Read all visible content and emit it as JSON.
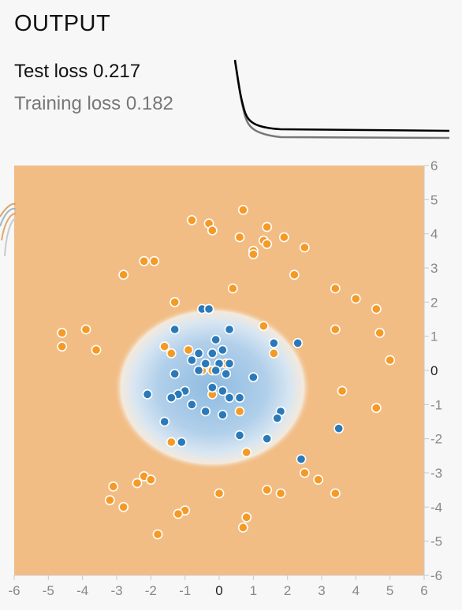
{
  "panel": {
    "title": "OUTPUT",
    "test_loss_label": "Test loss",
    "test_loss_value": "0.217",
    "training_loss_label": "Training loss",
    "training_loss_value": "0.182"
  },
  "colors": {
    "orange": "#f59a26",
    "blue": "#2b79b8",
    "bg_orange": "#f2bd85",
    "bg_blue": "#a9cbe6",
    "test_loss_line": "#000000",
    "training_loss_line": "#777777"
  },
  "chart_data": {
    "type": "scatter",
    "title": "",
    "xlabel": "",
    "ylabel": "",
    "xlim": [
      -6,
      6
    ],
    "ylim": [
      -6,
      6
    ],
    "x_ticks": [
      -6,
      -5,
      -4,
      -3,
      -2,
      -1,
      0,
      1,
      2,
      3,
      4,
      5,
      6
    ],
    "y_ticks": [
      6,
      5,
      4,
      3,
      2,
      1,
      0,
      -1,
      -2,
      -3,
      -4,
      -5,
      -6
    ],
    "decision_region": {
      "blue_class_center": [
        -0.2,
        -0.5
      ],
      "blue_class_semi_axes": [
        2.5,
        2.0
      ]
    },
    "series": [
      {
        "class": "orange",
        "points": [
          [
            -0.8,
            4.4
          ],
          [
            0.7,
            4.7
          ],
          [
            -0.3,
            4.3
          ],
          [
            -0.2,
            4.1
          ],
          [
            1.4,
            4.2
          ],
          [
            0.6,
            3.9
          ],
          [
            1.3,
            3.8
          ],
          [
            1.9,
            3.9
          ],
          [
            1.4,
            3.7
          ],
          [
            1.0,
            3.5
          ],
          [
            1.0,
            3.4
          ],
          [
            2.5,
            3.6
          ],
          [
            -2.2,
            3.2
          ],
          [
            -1.9,
            3.2
          ],
          [
            -2.8,
            2.8
          ],
          [
            2.2,
            2.8
          ],
          [
            0.4,
            2.4
          ],
          [
            3.4,
            2.4
          ],
          [
            4.0,
            2.1
          ],
          [
            -1.3,
            2.0
          ],
          [
            4.6,
            1.8
          ],
          [
            -3.9,
            1.2
          ],
          [
            -4.6,
            1.1
          ],
          [
            -4.6,
            0.7
          ],
          [
            -3.6,
            0.6
          ],
          [
            1.3,
            1.3
          ],
          [
            3.4,
            1.2
          ],
          [
            4.7,
            1.1
          ],
          [
            -1.6,
            0.7
          ],
          [
            -0.9,
            0.6
          ],
          [
            -1.4,
            0.5
          ],
          [
            1.6,
            0.5
          ],
          [
            5.0,
            0.3
          ],
          [
            0.2,
            0.2
          ],
          [
            -0.2,
            -0.0
          ],
          [
            -0.5,
            0.0
          ],
          [
            -0.2,
            -0.7
          ],
          [
            3.6,
            -0.6
          ],
          [
            0.6,
            -1.2
          ],
          [
            4.6,
            -1.1
          ],
          [
            -1.4,
            -2.1
          ],
          [
            0.8,
            -2.4
          ],
          [
            2.5,
            -3.0
          ],
          [
            2.9,
            -3.2
          ],
          [
            -3.1,
            -3.4
          ],
          [
            -2.2,
            -3.1
          ],
          [
            -2.4,
            -3.3
          ],
          [
            -2.0,
            -3.2
          ],
          [
            1.4,
            -3.5
          ],
          [
            1.8,
            -3.6
          ],
          [
            3.4,
            -3.6
          ],
          [
            0.0,
            -3.6
          ],
          [
            -3.2,
            -3.8
          ],
          [
            -2.8,
            -4.0
          ],
          [
            -1.0,
            -4.1
          ],
          [
            -1.2,
            -4.2
          ],
          [
            0.8,
            -4.3
          ],
          [
            0.7,
            -4.6
          ],
          [
            -1.8,
            -4.8
          ]
        ]
      },
      {
        "class": "blue",
        "points": [
          [
            -0.5,
            1.8
          ],
          [
            -0.3,
            1.8
          ],
          [
            -1.3,
            1.2
          ],
          [
            0.3,
            1.2
          ],
          [
            -0.1,
            0.9
          ],
          [
            1.6,
            0.8
          ],
          [
            2.3,
            0.8
          ],
          [
            -0.6,
            0.5
          ],
          [
            -0.2,
            0.5
          ],
          [
            0.1,
            0.6
          ],
          [
            -0.4,
            0.2
          ],
          [
            0.0,
            0.2
          ],
          [
            0.3,
            0.2
          ],
          [
            -0.8,
            0.3
          ],
          [
            -0.6,
            0.0
          ],
          [
            -0.1,
            0.0
          ],
          [
            0.2,
            -0.1
          ],
          [
            1.0,
            -0.2
          ],
          [
            -1.3,
            -0.1
          ],
          [
            -1.0,
            -0.6
          ],
          [
            -1.2,
            -0.7
          ],
          [
            -1.4,
            -0.8
          ],
          [
            -0.2,
            -0.5
          ],
          [
            0.1,
            -0.6
          ],
          [
            0.6,
            -0.8
          ],
          [
            -2.1,
            -0.7
          ],
          [
            -0.8,
            -1.0
          ],
          [
            0.3,
            -0.8
          ],
          [
            -0.4,
            -1.2
          ],
          [
            0.1,
            -1.3
          ],
          [
            1.8,
            -1.2
          ],
          [
            1.7,
            -1.4
          ],
          [
            -1.6,
            -1.5
          ],
          [
            0.6,
            -1.9
          ],
          [
            1.4,
            -2.0
          ],
          [
            -1.1,
            -2.1
          ],
          [
            3.5,
            -1.7
          ],
          [
            2.4,
            -2.6
          ]
        ]
      }
    ]
  }
}
